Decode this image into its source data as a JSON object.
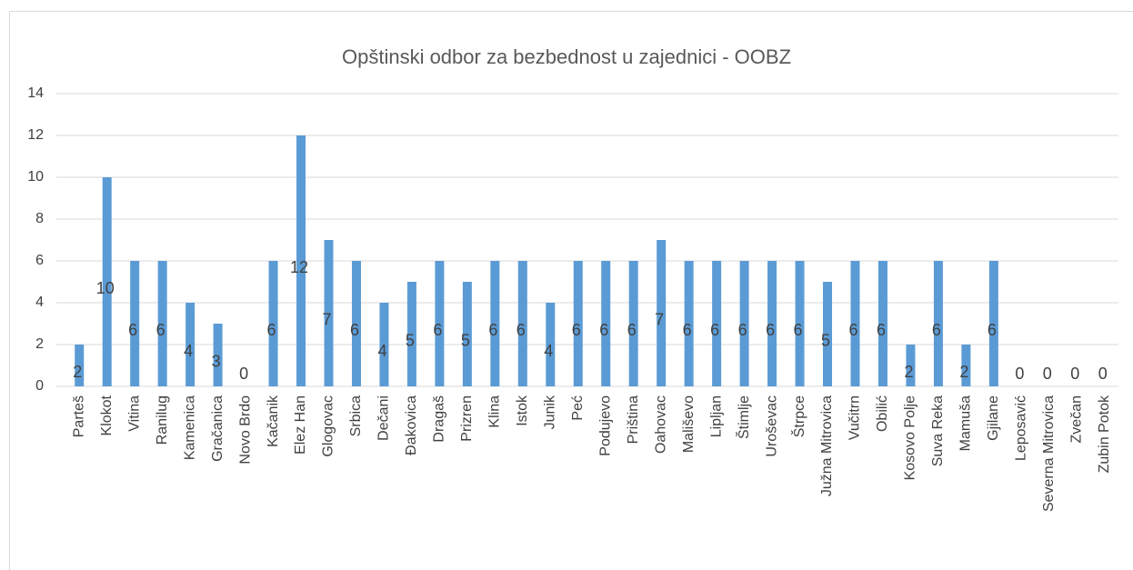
{
  "chart_data": {
    "type": "bar",
    "title": "Opštinski odbor za bezbednost u zajednici - OOBZ",
    "categories": [
      "Parteš",
      "Klokot",
      "Vitina",
      "Ranilug",
      "Kamenica",
      "Gračanica",
      "Novo Brdo",
      "Kačanik",
      "Elez Han",
      "Glogovac",
      "Srbica",
      "Dečani",
      "Đakovica",
      "Dragaš",
      "Prizren",
      "Klina",
      "Istok",
      "Junik",
      "Peć",
      "Podujevo",
      "Priština",
      "Oahovac",
      "Mališevo",
      "Lipljan",
      "Štimlje",
      "Uroševac",
      "Štrpce",
      "Južna Mitrovica",
      "Vučitrn",
      "Obilić",
      "Kosovo Polje",
      "Suva Reka",
      "Mamuša",
      "Gjilane",
      "Leposavić",
      "Severna Mitrovica",
      "Zvečan",
      "Zubin Potok"
    ],
    "values": [
      2,
      10,
      6,
      6,
      4,
      3,
      0,
      6,
      12,
      7,
      6,
      4,
      5,
      6,
      5,
      6,
      6,
      4,
      6,
      6,
      6,
      7,
      6,
      6,
      6,
      6,
      6,
      5,
      6,
      6,
      2,
      6,
      2,
      6,
      0,
      0,
      0,
      0
    ],
    "color": "#5b9bd5",
    "ylim": [
      0,
      14
    ],
    "yticks": [
      0,
      2,
      4,
      6,
      8,
      10,
      12,
      14
    ],
    "grid": true
  }
}
